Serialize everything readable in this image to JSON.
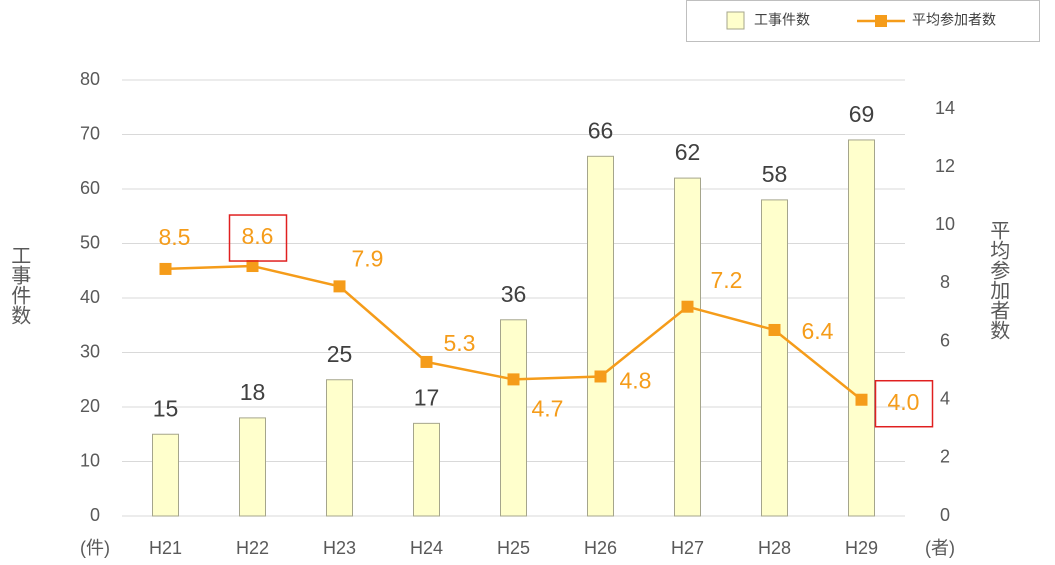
{
  "chart_data": {
    "type": "bar",
    "categories": [
      "H21",
      "H22",
      "H23",
      "H24",
      "H25",
      "H26",
      "H27",
      "H28",
      "H29"
    ],
    "series": [
      {
        "name": "工事件数",
        "type": "bar",
        "color": "#ffffcc",
        "edge_color": "#a5a58c",
        "values": [
          15,
          18,
          25,
          17,
          36,
          66,
          62,
          58,
          69
        ]
      },
      {
        "name": "平均参加者数",
        "type": "line",
        "axis": "y2",
        "color": "#f59c1a",
        "values": [
          8.5,
          8.6,
          7.9,
          5.3,
          4.7,
          4.8,
          7.2,
          6.4,
          4.0
        ],
        "value_labels": [
          "8.5",
          "8.6",
          "7.9",
          "5.3",
          "4.7",
          "4.8",
          "7.2",
          "6.4",
          "4.0"
        ],
        "highlight": [
          1,
          8
        ],
        "highlight_color": "#e02020"
      }
    ],
    "ylabel": "工事件数",
    "y2label": "平均参加者数",
    "yunit": "(件)",
    "y2unit": "(者)",
    "ylim": [
      0,
      80
    ],
    "yticks": [
      0,
      10,
      20,
      30,
      40,
      50,
      60,
      70,
      80
    ],
    "y2lim": [
      0,
      15
    ],
    "y2ticks": [
      0,
      2,
      4,
      6,
      8,
      10,
      12,
      14
    ],
    "grid": true,
    "legend": "top-right"
  }
}
